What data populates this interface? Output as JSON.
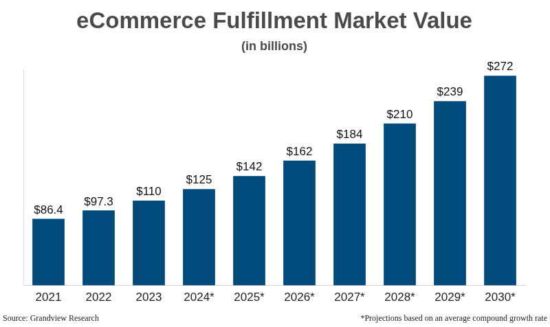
{
  "chart_data": {
    "type": "bar",
    "title": "eCommerce Fulfillment Market Value",
    "subtitle": "(in billions)",
    "categories": [
      "2021",
      "2022",
      "2023",
      "2024*",
      "2025*",
      "2026*",
      "2027*",
      "2028*",
      "2029*",
      "2030*"
    ],
    "values": [
      86.4,
      97.3,
      110,
      125,
      142,
      162,
      184,
      210,
      239,
      272
    ],
    "value_labels": [
      "$86.4",
      "$97.3",
      "$110",
      "$125",
      "$142",
      "$162",
      "$184",
      "$210",
      "$239",
      "$272"
    ],
    "color": "#004a7c",
    "ylim": [
      0,
      280
    ],
    "grid": false,
    "tick_labels": "x",
    "data_labels": true,
    "annotations": [
      "Source: Grandview Research",
      "*Projections based on an average compound growth rate"
    ]
  }
}
